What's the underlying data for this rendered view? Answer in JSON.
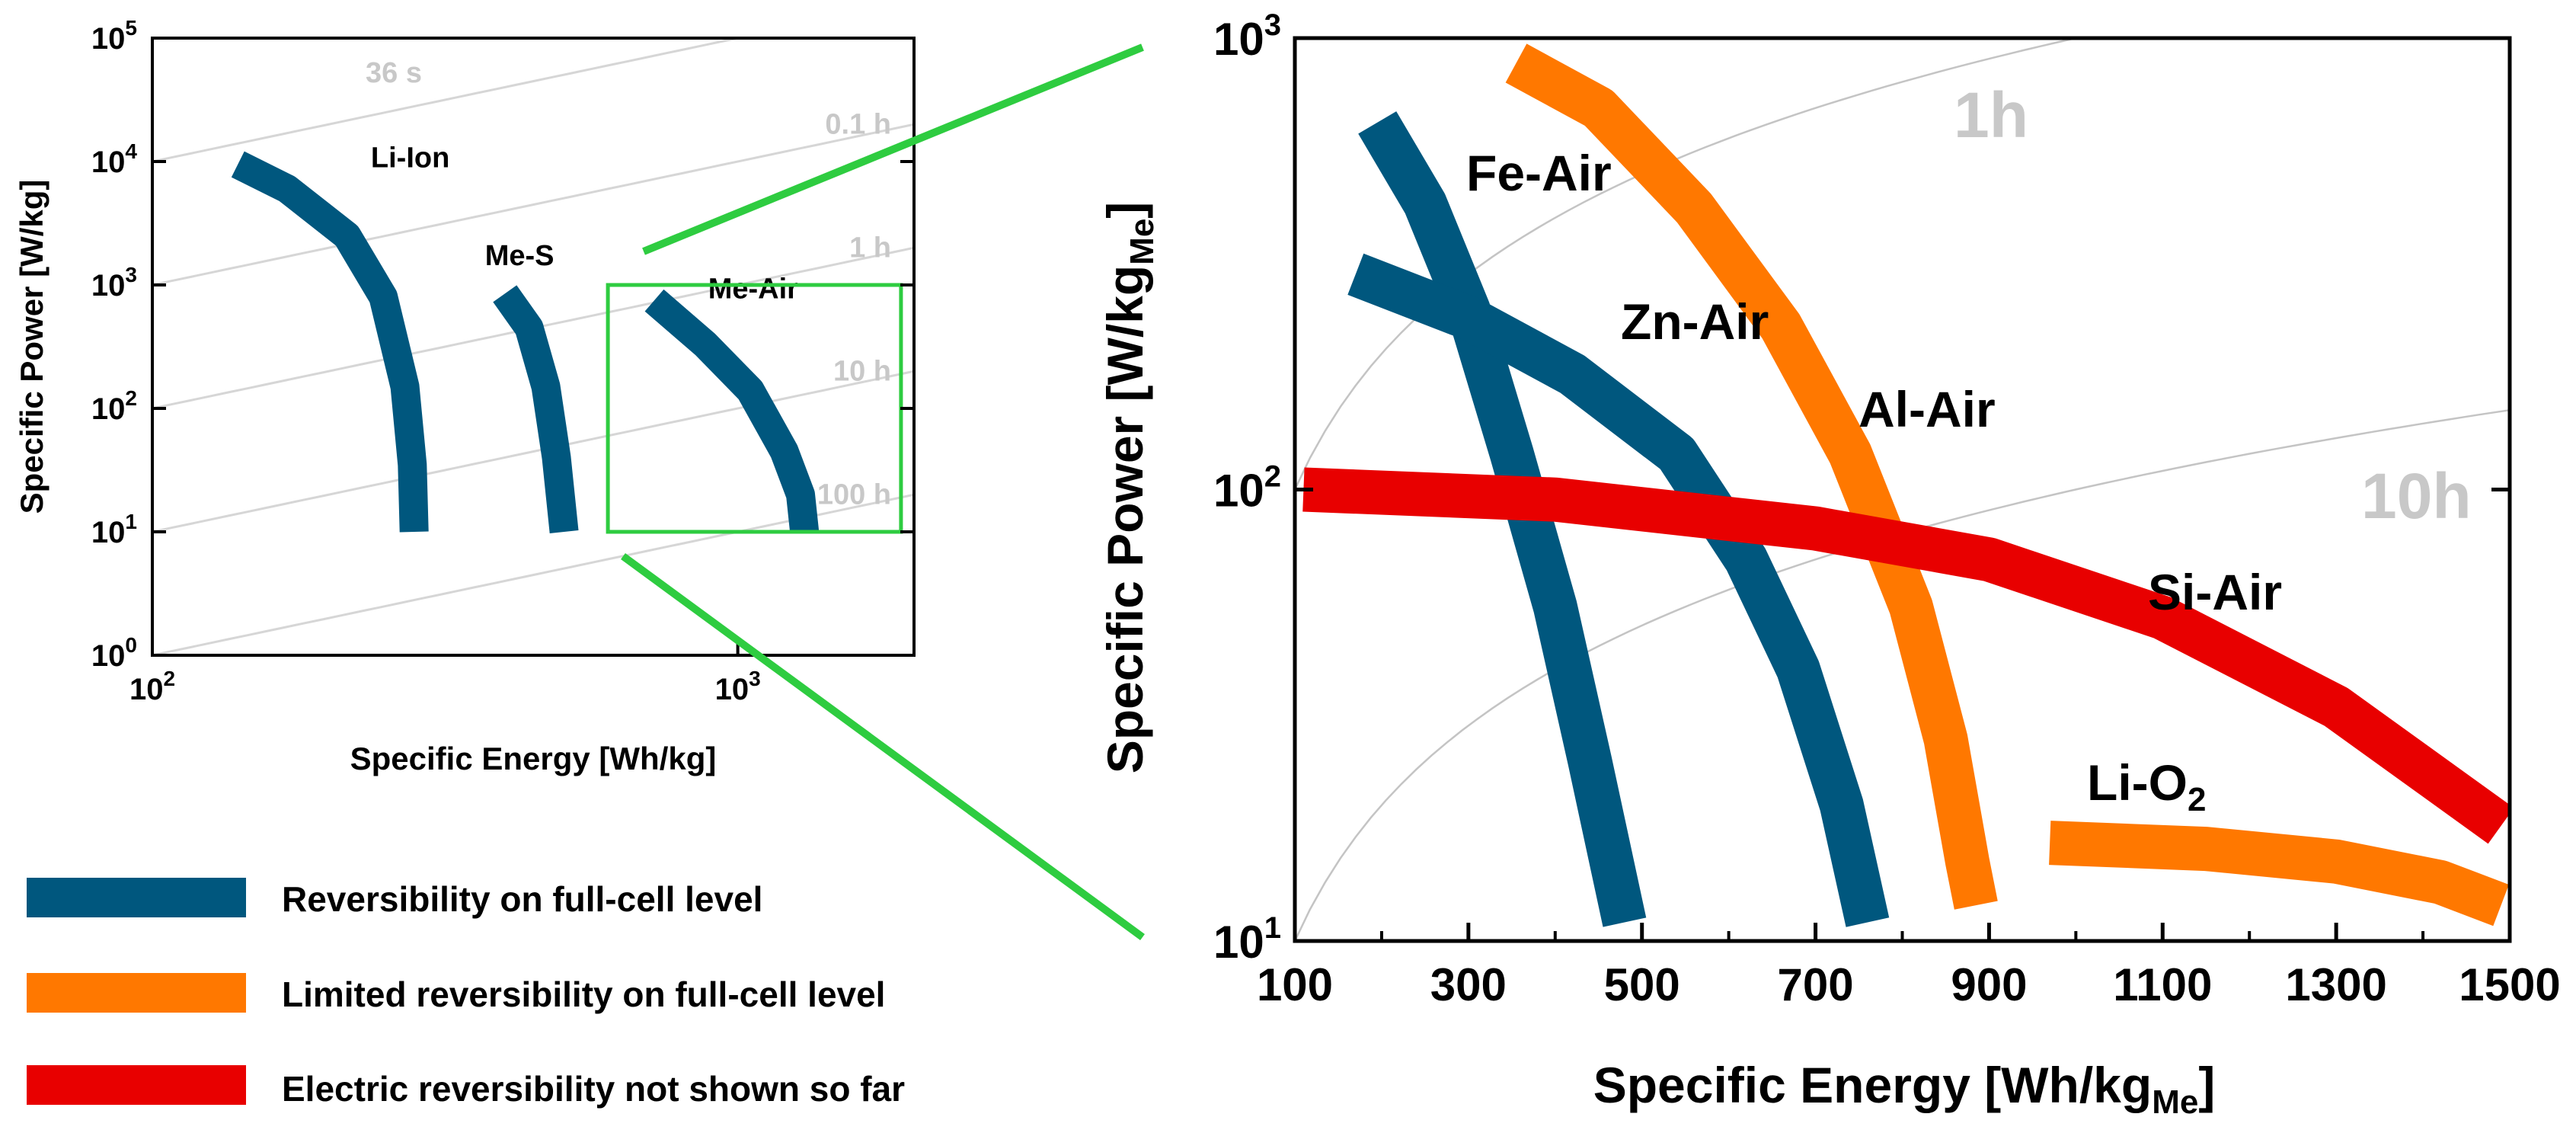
{
  "colors": {
    "reversible": "#00577e",
    "limited": "#ff7800",
    "not_shown": "#e80000",
    "zoom": "#2ecc40",
    "iso": "#d6d6d6",
    "iso_label": "#c8c8c8"
  },
  "chart_data": [
    {
      "type": "line",
      "title": "",
      "xlabel": "Specific Energy [Wh/kg]",
      "ylabel": "Specific Power [W/kg]",
      "xscale": "log",
      "yscale": "log",
      "xlim": [
        100,
        2000
      ],
      "ylim": [
        1,
        100000
      ],
      "x_ticks": [
        {
          "base": "10",
          "exp": "2",
          "value": 100
        },
        {
          "base": "10",
          "exp": "3",
          "value": 1000
        }
      ],
      "y_ticks": [
        {
          "base": "10",
          "exp": "0",
          "value": 1
        },
        {
          "base": "10",
          "exp": "1",
          "value": 10
        },
        {
          "base": "10",
          "exp": "2",
          "value": 100
        },
        {
          "base": "10",
          "exp": "3",
          "value": 1000
        },
        {
          "base": "10",
          "exp": "4",
          "value": 10000
        },
        {
          "base": "10",
          "exp": "5",
          "value": 100000
        }
      ],
      "iso_lines": [
        {
          "label": "36 s",
          "hours": 0.01
        },
        {
          "label": "0.1 h",
          "hours": 0.1
        },
        {
          "label": "1 h",
          "hours": 1
        },
        {
          "label": "10 h",
          "hours": 10
        },
        {
          "label": "100 h",
          "hours": 100
        }
      ],
      "series": [
        {
          "name": "Li-Ion",
          "category": "reversible",
          "points": [
            [
              140,
              9500
            ],
            [
              170,
              6000
            ],
            [
              215,
              2500
            ],
            [
              248,
              800
            ],
            [
              270,
              150
            ],
            [
              278,
              35
            ],
            [
              280,
              10
            ]
          ]
        },
        {
          "name": "Me-S",
          "category": "reversible",
          "points": [
            [
              400,
              850
            ],
            [
              440,
              450
            ],
            [
              470,
              150
            ],
            [
              490,
              40
            ],
            [
              505,
              10
            ]
          ]
        },
        {
          "name": "Me-Air",
          "category": "reversible",
          "points": [
            [
              720,
              750
            ],
            [
              880,
              330
            ],
            [
              1050,
              140
            ],
            [
              1200,
              45
            ],
            [
              1280,
              20
            ],
            [
              1300,
              10
            ]
          ]
        }
      ],
      "zoom_region": {
        "x": [
          600,
          1900
        ],
        "y": [
          10,
          1000
        ]
      }
    },
    {
      "type": "line",
      "title": "",
      "xlabel": "Specific Energy [Wh/kg",
      "xlabel_sub": "Me",
      "xlabel_end": "]",
      "ylabel": "Specific Power [W/kg",
      "ylabel_sub": "Me",
      "ylabel_end": "]",
      "xscale": "linear",
      "yscale": "log",
      "xlim": [
        100,
        1500
      ],
      "ylim": [
        10,
        1000
      ],
      "x_ticks": [
        "100",
        "300",
        "500",
        "700",
        "900",
        "1100",
        "1300",
        "1500"
      ],
      "y_ticks": [
        {
          "base": "10",
          "exp": "1",
          "value": 10
        },
        {
          "base": "10",
          "exp": "2",
          "value": 100
        },
        {
          "base": "10",
          "exp": "3",
          "value": 1000
        }
      ],
      "iso_lines": [
        {
          "label": "1h",
          "hours": 1
        },
        {
          "label": "10h",
          "hours": 10
        }
      ],
      "series": [
        {
          "name": "Fe-Air",
          "category": "reversible",
          "points": [
            [
              195,
              650
            ],
            [
              250,
              430
            ],
            [
              300,
              250
            ],
            [
              350,
              120
            ],
            [
              400,
              55
            ],
            [
              440,
              25
            ],
            [
              480,
              11
            ]
          ]
        },
        {
          "name": "Zn-Air",
          "category": "reversible",
          "points": [
            [
              170,
              300
            ],
            [
              300,
              240
            ],
            [
              420,
              180
            ],
            [
              540,
              120
            ],
            [
              620,
              70
            ],
            [
              680,
              40
            ],
            [
              730,
              20
            ],
            [
              760,
              11
            ]
          ]
        },
        {
          "name": "Al-Air",
          "category": "limited",
          "points": [
            [
              355,
              880
            ],
            [
              450,
              700
            ],
            [
              560,
              420
            ],
            [
              660,
              230
            ],
            [
              740,
              120
            ],
            [
              810,
              55
            ],
            [
              850,
              28
            ],
            [
              875,
              15
            ],
            [
              885,
              12
            ]
          ]
        },
        {
          "name": "Si-Air",
          "category": "not_shown",
          "points": [
            [
              110,
              100
            ],
            [
              400,
              95
            ],
            [
              700,
              82
            ],
            [
              900,
              70
            ],
            [
              1100,
              52
            ],
            [
              1300,
              33
            ],
            [
              1490,
              18
            ]
          ]
        },
        {
          "name": "Li-O2",
          "name_base": "Li-O",
          "name_sub": "2",
          "category": "limited",
          "points": [
            [
              970,
              16.5
            ],
            [
              1150,
              16
            ],
            [
              1300,
              15
            ],
            [
              1420,
              13.5
            ],
            [
              1490,
              12
            ]
          ]
        }
      ]
    }
  ],
  "legend": [
    {
      "label": "Reversibility on full-cell level",
      "category": "reversible"
    },
    {
      "label": "Limited reversibility on full-cell level",
      "category": "limited"
    },
    {
      "label": "Electric reversibility not shown so far",
      "category": "not_shown"
    }
  ]
}
